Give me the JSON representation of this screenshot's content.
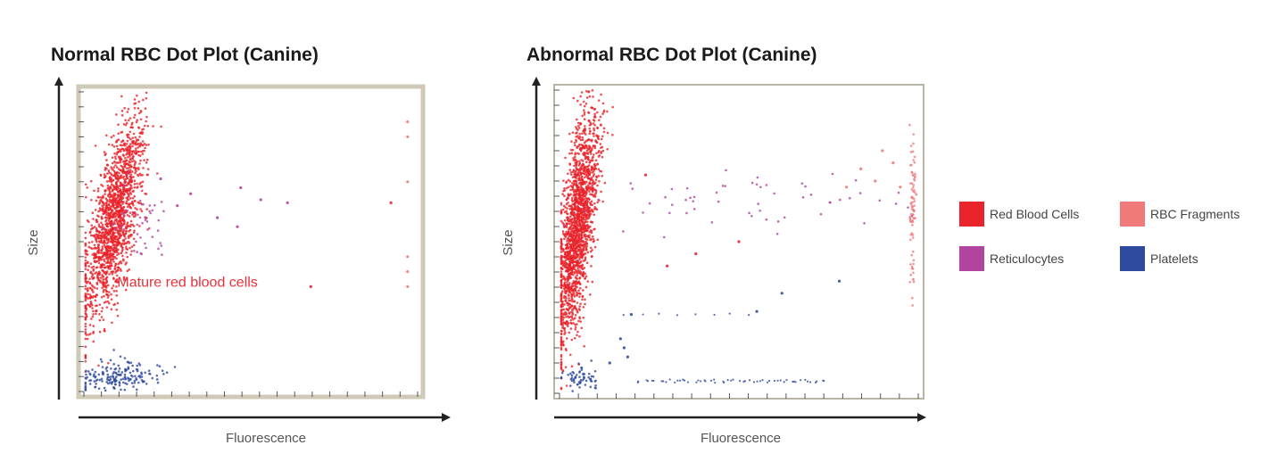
{
  "colors": {
    "rbc": "#e8232b",
    "fragments": "#f0797a",
    "reticulocytes": "#b0449e",
    "platelets": "#2e4a9e"
  },
  "legend": [
    {
      "label": "Red Blood Cells",
      "color_key": "rbc"
    },
    {
      "label": "RBC Fragments",
      "color_key": "fragments"
    },
    {
      "label": "Reticulocytes",
      "color_key": "reticulocytes"
    },
    {
      "label": "Platelets",
      "color_key": "platelets"
    }
  ],
  "chart_data": [
    {
      "type": "scatter",
      "title": "Normal RBC Dot Plot (Canine)",
      "xlabel": "Fluorescence",
      "ylabel": "Size",
      "xlim": [
        0,
        100
      ],
      "ylim": [
        0,
        100
      ],
      "grid": false,
      "annotations": [
        {
          "text": "Mature red blood cells",
          "x": 10,
          "y": 35
        }
      ],
      "clusters": [
        {
          "series": "Red Blood Cells",
          "color_key": "rbc",
          "count": 1600,
          "x_mean": 9,
          "x_sd": 3.2,
          "y_mean": 57,
          "y_sd": 17,
          "slope": 0.19
        },
        {
          "series": "Reticulocytes",
          "color_key": "reticulocytes",
          "count": 45,
          "x_mean": 17,
          "x_sd": 4,
          "y_mean": 58,
          "y_sd": 7,
          "slope": 0
        },
        {
          "series": "Platelets",
          "color_key": "platelets",
          "count": 180,
          "x_mean": 10,
          "x_sd": 5,
          "y_mean": 5,
          "y_sd": 2.5,
          "slope": 0.22
        }
      ],
      "points": [
        {
          "x": 32,
          "y": 66,
          "c": "reticulocytes"
        },
        {
          "x": 47,
          "y": 68,
          "c": "reticulocytes"
        },
        {
          "x": 53,
          "y": 64,
          "c": "reticulocytes"
        },
        {
          "x": 61,
          "y": 63,
          "c": "reticulocytes"
        },
        {
          "x": 46,
          "y": 55,
          "c": "reticulocytes"
        },
        {
          "x": 40,
          "y": 58,
          "c": "reticulocytes"
        },
        {
          "x": 68,
          "y": 35,
          "c": "rbc"
        },
        {
          "x": 92,
          "y": 63,
          "c": "rbc"
        },
        {
          "x": 97,
          "y": 90,
          "c": "fragments"
        },
        {
          "x": 97,
          "y": 85,
          "c": "fragments"
        },
        {
          "x": 97,
          "y": 70,
          "c": "fragments"
        },
        {
          "x": 97,
          "y": 45,
          "c": "fragments"
        },
        {
          "x": 97,
          "y": 40,
          "c": "fragments"
        },
        {
          "x": 97,
          "y": 35,
          "c": "fragments"
        },
        {
          "x": 23,
          "y": 71,
          "c": "reticulocytes"
        },
        {
          "x": 28,
          "y": 62,
          "c": "reticulocytes"
        }
      ]
    },
    {
      "type": "scatter",
      "title": "Abnormal RBC Dot Plot (Canine)",
      "xlabel": "Fluorescence",
      "ylabel": "Size",
      "xlim": [
        0,
        100
      ],
      "ylim": [
        0,
        100
      ],
      "grid": false,
      "annotations": [],
      "clusters": [
        {
          "series": "Red Blood Cells",
          "color_key": "rbc",
          "count": 1800,
          "x_mean": 5,
          "x_sd": 2.2,
          "y_mean": 55,
          "y_sd": 19,
          "slope": 0.1
        },
        {
          "series": "Reticulocytes",
          "color_key": "reticulocytes",
          "count": 60,
          "x_mean": 50,
          "x_sd": 24,
          "y_mean": 62,
          "y_sd": 5,
          "slope": 0
        },
        {
          "series": "Platelets",
          "color_key": "platelets",
          "count": 60,
          "x_mean": 6,
          "x_sd": 3,
          "y_mean": 5,
          "y_sd": 1.8,
          "slope": 0
        },
        {
          "series": "RBC Fragments",
          "color_key": "fragments",
          "count": 80,
          "x_mean": 98.5,
          "x_sd": 0.4,
          "y_mean": 60,
          "y_sd": 14,
          "slope": 0
        }
      ],
      "points": [
        {
          "x": 20,
          "y": 26,
          "c": "platelets"
        },
        {
          "x": 18,
          "y": 15,
          "c": "platelets"
        },
        {
          "x": 17,
          "y": 18,
          "c": "platelets"
        },
        {
          "x": 19,
          "y": 12,
          "c": "platelets"
        },
        {
          "x": 14,
          "y": 10,
          "c": "platelets"
        },
        {
          "x": 55,
          "y": 27,
          "c": "platelets"
        },
        {
          "x": 62,
          "y": 33,
          "c": "platelets"
        },
        {
          "x": 78,
          "y": 37,
          "c": "platelets"
        },
        {
          "x": 95,
          "y": 68,
          "c": "fragments"
        },
        {
          "x": 90,
          "y": 80,
          "c": "fragments"
        },
        {
          "x": 84,
          "y": 74,
          "c": "fragments"
        },
        {
          "x": 88,
          "y": 70,
          "c": "fragments"
        },
        {
          "x": 93,
          "y": 76,
          "c": "fragments"
        },
        {
          "x": 80,
          "y": 68,
          "c": "fragments"
        },
        {
          "x": 38,
          "y": 46,
          "c": "rbc"
        },
        {
          "x": 50,
          "y": 50,
          "c": "rbc"
        },
        {
          "x": 30,
          "y": 42,
          "c": "rbc"
        },
        {
          "x": 24,
          "y": 72,
          "c": "rbc"
        }
      ],
      "streaks": [
        {
          "x_from": 22,
          "x_to": 75,
          "y": 4,
          "c": "platelets",
          "count": 55
        },
        {
          "x_from": 18,
          "x_to": 58,
          "y": 26,
          "c": "platelets",
          "count": 8
        }
      ]
    }
  ]
}
